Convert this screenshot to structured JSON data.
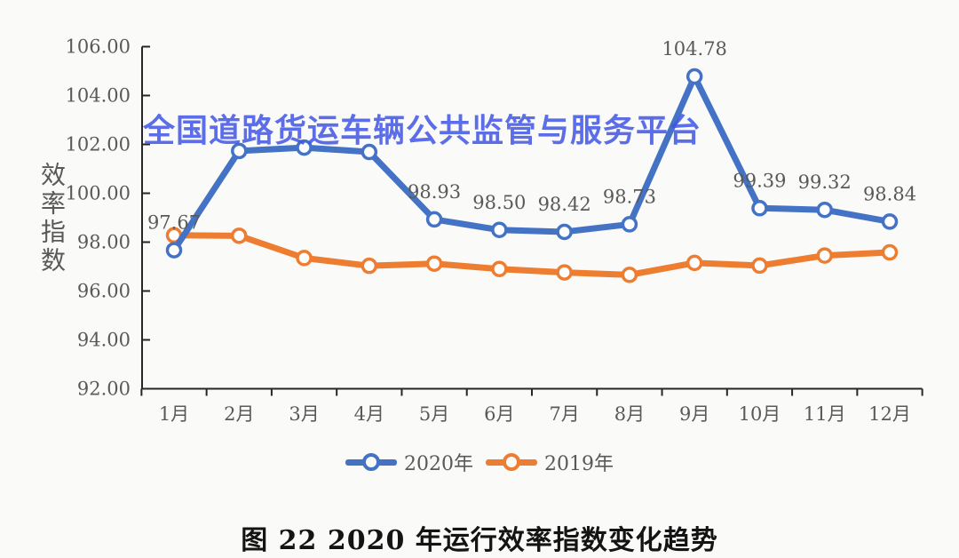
{
  "watermark": {
    "text": "全国道路货运车辆公共监管与服务平台",
    "color": "#4155E6"
  },
  "caption": "图 22 2020 年运行效率指数变化趋势",
  "y_axis": {
    "title": "效率指数",
    "tick_labels": [
      "106.00",
      "104.00",
      "102.00",
      "100.00",
      "98.00",
      "96.00",
      "94.00",
      "92.00"
    ]
  },
  "x_axis": {
    "labels": [
      "1月",
      "2月",
      "3月",
      "4月",
      "5月",
      "6月",
      "7月",
      "8月",
      "9月",
      "10月",
      "11月",
      "12月"
    ]
  },
  "legend": {
    "items": [
      {
        "label": "2020年",
        "color": "#4472C4"
      },
      {
        "label": "2019年",
        "color": "#ED7D31"
      }
    ]
  },
  "colors": {
    "series_2020": "#4472C4",
    "series_2019": "#ED7D31",
    "axis_line": "#262626",
    "axis_text": "#595959",
    "data_label_text": "#3D3D3D",
    "watermark": "#4155E6",
    "background": "#FAFAF8"
  },
  "chart_data": {
    "type": "line",
    "title": "图 22 2020 年运行效率指数变化趋势",
    "ylabel": "效率指数",
    "xlabel": "",
    "ylim": [
      92,
      106
    ],
    "ytick_step": 2,
    "grid": false,
    "legend_position": "bottom",
    "categories": [
      "1月",
      "2月",
      "3月",
      "4月",
      "5月",
      "6月",
      "7月",
      "8月",
      "9月",
      "10月",
      "11月",
      "12月"
    ],
    "series": [
      {
        "name": "2020年",
        "color": "#4472C4",
        "values": [
          97.67,
          101.73,
          101.87,
          101.69,
          98.93,
          98.5,
          98.42,
          98.73,
          104.78,
          99.39,
          99.32,
          98.84
        ],
        "point_labels": [
          "97.67",
          "",
          "",
          "",
          "98.93",
          "98.50",
          "98.42",
          "98.73",
          "104.78",
          "99.39",
          "99.32",
          "98.84"
        ]
      },
      {
        "name": "2019年",
        "color": "#ED7D31",
        "values": [
          98.28,
          98.26,
          97.35,
          97.03,
          97.12,
          96.9,
          96.76,
          96.66,
          97.15,
          97.04,
          97.45,
          97.58
        ],
        "point_labels": [
          "",
          "",
          "",
          "",
          "",
          "",
          "",
          "",
          "",
          "",
          "",
          ""
        ]
      }
    ]
  }
}
